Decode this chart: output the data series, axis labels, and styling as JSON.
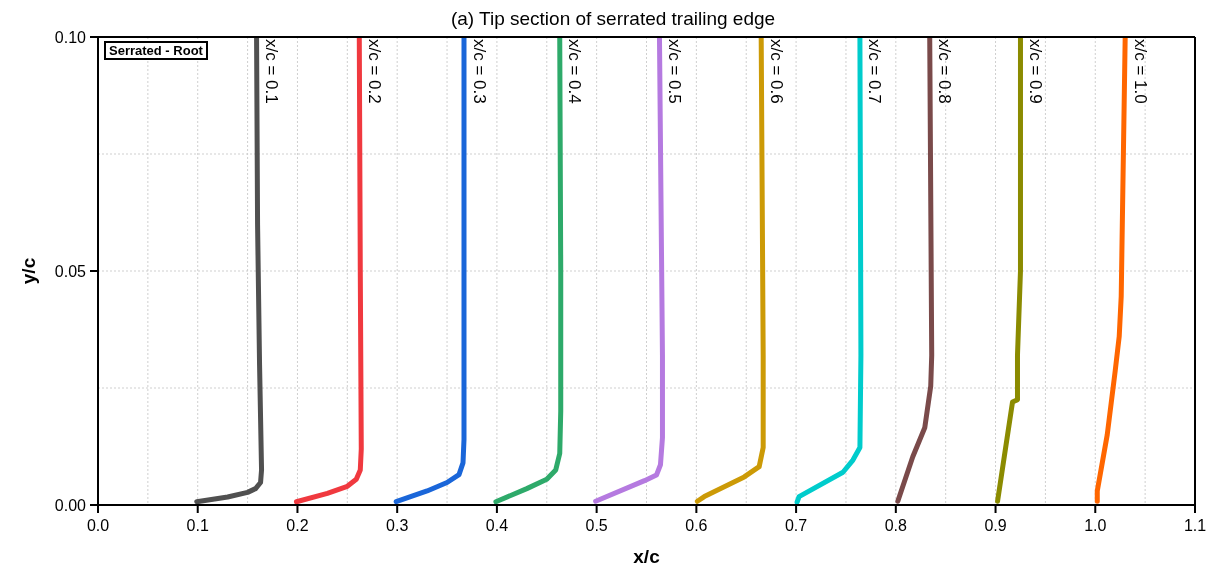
{
  "chart_data": {
    "type": "line",
    "title": "(a) Tip section of serrated trailing edge",
    "xlabel": "x/c",
    "ylabel": "y/c",
    "annotations": [
      "Serrated - Root"
    ],
    "xlim": [
      0,
      1.1
    ],
    "ylim": [
      0,
      0.1
    ],
    "xticks": [
      {
        "value": 0,
        "label": "0.0"
      },
      {
        "value": 0.05,
        "label": null
      },
      0.1,
      {
        "value": 0.15,
        "label": null
      },
      0.2,
      {
        "value": 0.25,
        "label": null
      },
      0.3,
      {
        "value": 0.35,
        "label": null
      },
      0.4,
      {
        "value": 0.45,
        "label": null
      },
      0.5,
      {
        "value": 0.55,
        "label": null
      },
      0.6,
      {
        "value": 0.65,
        "label": null
      },
      0.7,
      {
        "value": 0.75,
        "label": null
      },
      0.8,
      {
        "value": 0.85,
        "label": null
      },
      0.9,
      {
        "value": 0.95,
        "label": null
      },
      {
        "value": 1,
        "label": "1.0"
      },
      {
        "value": 1.05,
        "label": null
      },
      1.1
    ],
    "yticks": [
      {
        "value": 0,
        "label": "0.00"
      },
      {
        "value": 0.025,
        "label": null
      },
      0.05,
      {
        "value": 0.075,
        "label": null
      },
      {
        "value": 0.1,
        "label": "0.10"
      }
    ],
    "grid": true,
    "marker": "none",
    "line_style": "solid",
    "series": [
      {
        "name": "x/c = 0.1",
        "color": "#505050",
        "x": [
          0.099,
          0.13,
          0.15,
          0.158,
          0.163,
          0.164,
          0.162,
          0.16,
          0.159
        ],
        "values": [
          0.0007,
          0.0017,
          0.0027,
          0.0035,
          0.0048,
          0.0075,
          0.03,
          0.06,
          0.1
        ]
      },
      {
        "name": "x/c = 0.2",
        "color": "#f0393f",
        "x": [
          0.199,
          0.23,
          0.25,
          0.259,
          0.263,
          0.264,
          0.263,
          0.262
        ],
        "values": [
          0.0007,
          0.0025,
          0.004,
          0.0055,
          0.0075,
          0.012,
          0.05,
          0.1
        ]
      },
      {
        "name": "x/c = 0.3",
        "color": "#1a66d9",
        "x": [
          0.299,
          0.33,
          0.35,
          0.362,
          0.366,
          0.367,
          0.367,
          0.367
        ],
        "values": [
          0.0007,
          0.003,
          0.0048,
          0.0065,
          0.009,
          0.014,
          0.05,
          0.1
        ]
      },
      {
        "name": "x/c = 0.4",
        "color": "#2eaa6a",
        "x": [
          0.399,
          0.43,
          0.45,
          0.459,
          0.463,
          0.464,
          0.464,
          0.463
        ],
        "values": [
          0.0007,
          0.0035,
          0.0055,
          0.0075,
          0.011,
          0.02,
          0.05,
          0.1
        ]
      },
      {
        "name": "x/c = 0.5",
        "color": "#b57ae0",
        "x": [
          0.499,
          0.548,
          0.56,
          0.564,
          0.566,
          0.566,
          0.563
        ],
        "values": [
          0.0008,
          0.0052,
          0.0064,
          0.0086,
          0.0144,
          0.032,
          0.1
        ]
      },
      {
        "name": "x/c = 0.6",
        "color": "#cc9a06",
        "x": [
          0.601,
          0.608,
          0.648,
          0.663,
          0.667,
          0.667,
          0.665
        ],
        "values": [
          0.0008,
          0.0018,
          0.006,
          0.0082,
          0.0123,
          0.032,
          0.1
        ]
      },
      {
        "name": "x/c = 0.7",
        "color": "#00cccc",
        "x": [
          0.701,
          0.703,
          0.747,
          0.757,
          0.764,
          0.765,
          0.764
        ],
        "values": [
          0.0006,
          0.0018,
          0.007,
          0.0096,
          0.0123,
          0.032,
          0.1
        ]
      },
      {
        "name": "x/c = 0.8",
        "color": "#7a4a4a",
        "x": [
          0.802,
          0.817,
          0.829,
          0.835,
          0.836,
          0.834
        ],
        "values": [
          0.0008,
          0.0103,
          0.0165,
          0.0254,
          0.032,
          0.1
        ]
      },
      {
        "name": "x/c = 0.9",
        "color": "#8b8b00",
        "x": [
          0.902,
          0.917,
          0.922,
          0.922,
          0.925,
          0.925
        ],
        "values": [
          0.0008,
          0.022,
          0.0225,
          0.032,
          0.05,
          0.1
        ]
      },
      {
        "name": "x/c = 1.0",
        "color": "#ff6600",
        "x": [
          1.002,
          1.002,
          1.012,
          1.02,
          1.024,
          1.026,
          1.03
        ],
        "values": [
          0.0008,
          0.003,
          0.015,
          0.0287,
          0.036,
          0.0445,
          0.1
        ]
      }
    ]
  }
}
